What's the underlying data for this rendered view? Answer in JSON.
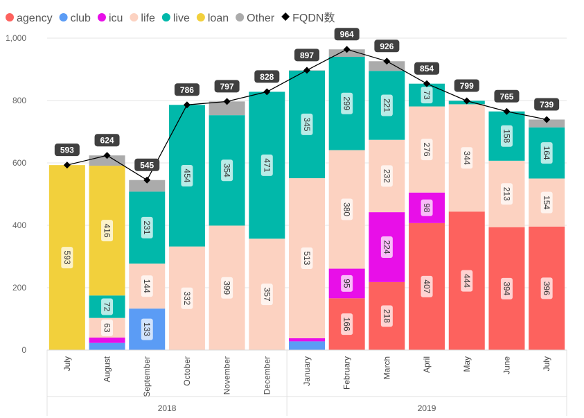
{
  "chart_data": {
    "type": "bar",
    "stacked": true,
    "categories": [
      "July",
      "August",
      "September",
      "October",
      "November",
      "December",
      "January",
      "February",
      "March",
      "April",
      "May",
      "June",
      "July"
    ],
    "years": [
      {
        "label": "2018",
        "from": 0,
        "to": 5
      },
      {
        "label": "2019",
        "from": 6,
        "to": 12
      }
    ],
    "ylim": [
      0,
      1000
    ],
    "yticks": [
      0,
      200,
      400,
      600,
      800,
      1000
    ],
    "ytick_labels": [
      "0",
      "200",
      "400",
      "600",
      "800",
      "1,000"
    ],
    "series": [
      {
        "name": "agency",
        "color": "#FD625E",
        "values": [
          0,
          0,
          0,
          0,
          0,
          0,
          0,
          166,
          218,
          407,
          444,
          394,
          396
        ],
        "labels": [
          null,
          null,
          null,
          null,
          null,
          null,
          null,
          "166",
          "218",
          "407",
          "444",
          "394",
          "396"
        ]
      },
      {
        "name": "club",
        "color": "#5B9CF5",
        "values": [
          0,
          23,
          133,
          0,
          0,
          0,
          28,
          0,
          0,
          0,
          0,
          0,
          0
        ],
        "labels": [
          null,
          null,
          "133",
          null,
          null,
          null,
          null,
          null,
          null,
          null,
          null,
          null,
          null
        ]
      },
      {
        "name": "icu",
        "color": "#E80FE8",
        "values": [
          0,
          17,
          0,
          0,
          0,
          0,
          10,
          95,
          224,
          98,
          0,
          0,
          0
        ],
        "labels": [
          null,
          null,
          null,
          null,
          null,
          null,
          null,
          "95",
          "224",
          "98",
          null,
          null,
          null
        ]
      },
      {
        "name": "life",
        "color": "#FCD2C1",
        "values": [
          0,
          63,
          144,
          332,
          399,
          357,
          513,
          380,
          232,
          276,
          344,
          213,
          154
        ],
        "labels": [
          null,
          "63",
          "144",
          "332",
          "399",
          "357",
          "513",
          "380",
          "232",
          "276",
          "344",
          "213",
          "154"
        ]
      },
      {
        "name": "live",
        "color": "#01B8AA",
        "values": [
          0,
          72,
          231,
          454,
          354,
          471,
          345,
          299,
          221,
          73,
          11,
          158,
          164
        ],
        "labels": [
          null,
          "72",
          "231",
          "454",
          "354",
          "471",
          "345",
          "299",
          "221",
          "73",
          null,
          "158",
          "164"
        ]
      },
      {
        "name": "loan",
        "color": "#F2D03C",
        "values": [
          593,
          416,
          0,
          0,
          0,
          0,
          0,
          0,
          0,
          0,
          0,
          0,
          0
        ],
        "labels": [
          "593",
          "416",
          null,
          null,
          null,
          null,
          null,
          null,
          null,
          null,
          null,
          null,
          null
        ]
      },
      {
        "name": "Other",
        "color": "#ABABAB",
        "values": [
          0,
          33,
          37,
          0,
          44,
          0,
          1,
          24,
          31,
          0,
          0,
          0,
          25
        ],
        "labels": [
          null,
          null,
          null,
          null,
          null,
          null,
          null,
          null,
          null,
          null,
          null,
          null,
          null
        ]
      }
    ],
    "line": {
      "name": "FQDN数",
      "color": "#000000",
      "values": [
        593,
        624,
        545,
        786,
        797,
        828,
        897,
        964,
        926,
        854,
        799,
        765,
        739
      ],
      "labels": [
        "593",
        "624",
        "545",
        "786",
        "797",
        "828",
        "897",
        "964",
        "926",
        "854",
        "799",
        "765",
        "739"
      ]
    },
    "legend": [
      "agency",
      "club",
      "icu",
      "life",
      "live",
      "loan",
      "Other",
      "FQDN数"
    ],
    "legend_position": "top-left"
  }
}
